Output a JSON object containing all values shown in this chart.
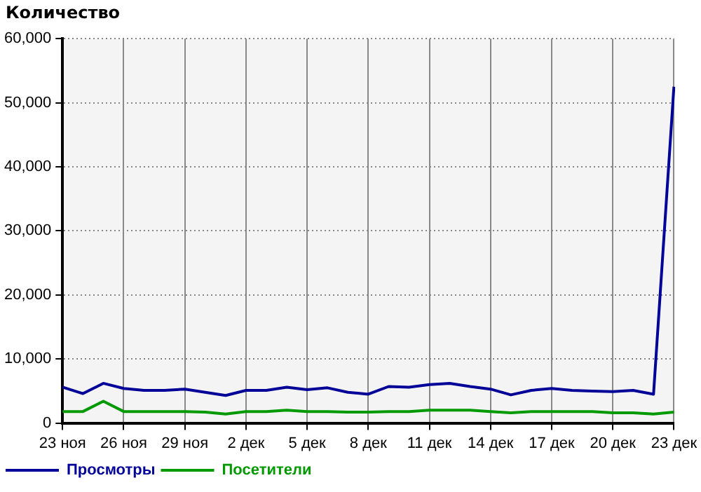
{
  "chart_data": {
    "type": "line",
    "ylabel": "Количество",
    "categories": [
      "23 ноя",
      null,
      null,
      "26 ноя",
      null,
      null,
      "29 ноя",
      null,
      null,
      "2 дек",
      null,
      null,
      "5 дек",
      null,
      null,
      "8 дек",
      null,
      null,
      "11 дек",
      null,
      null,
      "14 дек",
      null,
      null,
      "17 дек",
      null,
      null,
      "20 дек",
      null,
      null,
      "23 дек"
    ],
    "series": [
      {
        "name": "Просмотры",
        "color": "#000099",
        "values": [
          5600,
          4600,
          6200,
          5400,
          5100,
          5100,
          5300,
          4800,
          4300,
          5100,
          5100,
          5600,
          5200,
          5500,
          4800,
          4500,
          5700,
          5600,
          6000,
          6200,
          5700,
          5300,
          4400,
          5100,
          5400,
          5100,
          5000,
          4900,
          5100,
          4500,
          52500
        ]
      },
      {
        "name": "Посетители",
        "color": "#009900",
        "values": [
          1800,
          1800,
          3400,
          1800,
          1800,
          1800,
          1800,
          1700,
          1400,
          1800,
          1800,
          2000,
          1800,
          1800,
          1700,
          1700,
          1800,
          1800,
          2000,
          2000,
          2000,
          1800,
          1600,
          1800,
          1800,
          1800,
          1800,
          1600,
          1600,
          1400,
          1700
        ]
      }
    ],
    "ylim": [
      0,
      60000
    ],
    "yticks": [
      0,
      {
        "value": 10000,
        "label": "10,000"
      },
      {
        "value": 20000,
        "label": "20,000"
      },
      {
        "value": 30000,
        "label": "30,000"
      },
      {
        "value": 40000,
        "label": "40,000"
      },
      {
        "value": 50000,
        "label": "50,000"
      },
      {
        "value": 60000,
        "label": "60,000"
      }
    ],
    "grid": true,
    "legend": "bottom",
    "marker": "none",
    "line_style": "solid"
  }
}
